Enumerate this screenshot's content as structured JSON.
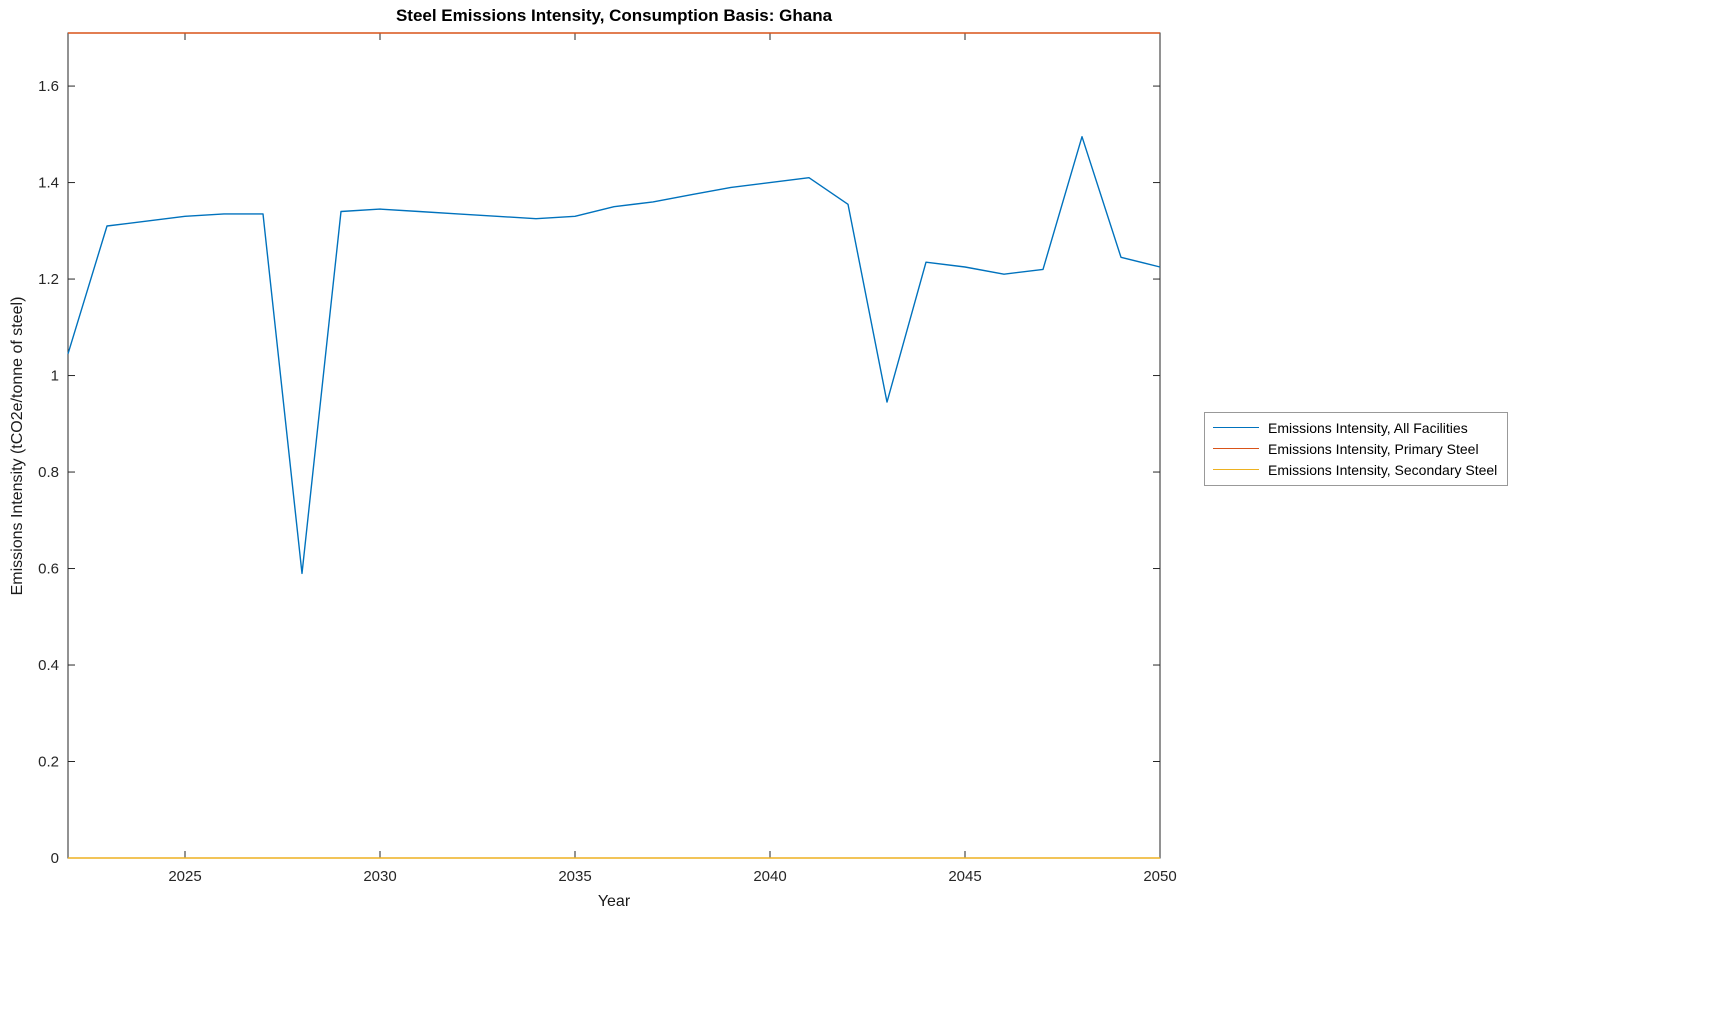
{
  "chart_data": {
    "type": "line",
    "title": "Steel Emissions Intensity, Consumption Basis: Ghana",
    "xlabel": "Year",
    "ylabel": "Emissions Intensity (tCO2e/tonne of steel)",
    "xlim": [
      2022,
      2050
    ],
    "ylim": [
      0,
      1.71
    ],
    "xticks": [
      2025,
      2030,
      2035,
      2040,
      2045,
      2050
    ],
    "yticks": [
      0,
      0.2,
      0.4,
      0.6,
      0.8,
      1,
      1.2,
      1.4,
      1.6
    ],
    "grid": false,
    "axis_color": "#262626",
    "legend_position": "right-outside",
    "x": [
      2022,
      2023,
      2024,
      2025,
      2026,
      2027,
      2028,
      2029,
      2030,
      2031,
      2032,
      2033,
      2034,
      2035,
      2036,
      2037,
      2038,
      2039,
      2040,
      2041,
      2042,
      2043,
      2044,
      2045,
      2046,
      2047,
      2048,
      2049,
      2050
    ],
    "series": [
      {
        "name": "Emissions Intensity, All Facilities",
        "color": "#0072BD",
        "values": [
          1.045,
          1.31,
          1.32,
          1.33,
          1.335,
          1.335,
          0.59,
          1.34,
          1.345,
          1.34,
          1.335,
          1.33,
          1.325,
          1.33,
          1.35,
          1.36,
          1.375,
          1.39,
          1.4,
          1.41,
          1.355,
          0.945,
          1.235,
          1.225,
          1.21,
          1.22,
          1.495,
          1.245,
          1.225
        ]
      },
      {
        "name": "Emissions Intensity, Primary Steel",
        "color": "#D95319",
        "constant": 1.71
      },
      {
        "name": "Emissions Intensity, Secondary Steel",
        "color": "#EDB120",
        "constant": 0
      }
    ]
  }
}
